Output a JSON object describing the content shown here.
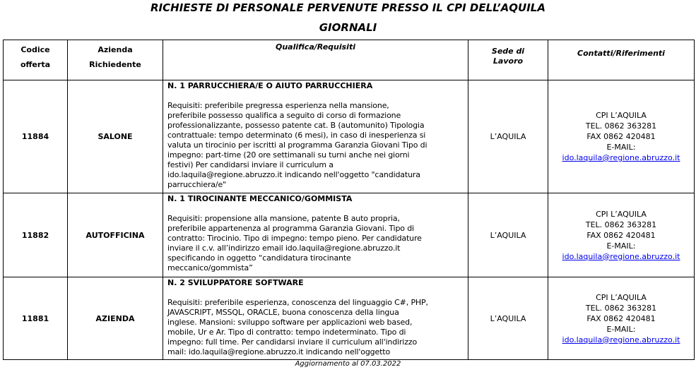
{
  "document": {
    "title": "RICHIESTE DI PERSONALE PERVENUTE PRESSO IL CPI DELL’AQUILA",
    "subtitle": "GIORNALI",
    "footer": "Aggiornamento al 07.03.2022"
  },
  "table": {
    "headers": {
      "codice": "Codice offerta",
      "codice_l1": "Codice",
      "codice_l2": "offerta",
      "azienda_l1": "Azienda",
      "azienda_l2": "Richiedente",
      "qualifica": "Qualifica/Requisiti",
      "sede_l1": "Sede di",
      "sede_l2": "Lavoro",
      "contatti": "Contatti/Riferimenti"
    },
    "rows": [
      {
        "codice": "11884",
        "azienda": "SALONE",
        "qualifica_title": "N. 1 PARRUCCHIERA/E O AIUTO PARRUCCHIERA",
        "requisiti_lines": [
          "Requisiti: preferibile pregressa esperienza nella mansione,",
          "preferibile possesso qualifica a seguito di corso di formazione",
          "professionalizzante, possesso patente cat. B (automunito) Tipologia",
          "contrattuale: tempo determinato (6 mesi), in caso di inesperienza si",
          "valuta un tirocinio per iscritti al programma Garanzia Giovani Tipo di",
          "impegno: part-time (20 ore settimanali su turni anche nei giorni",
          "festivi) Per candidarsi inviare il curriculum a",
          "ido.laquila@regione.abruzzo.it indicando nell'oggetto \"candidatura",
          "parrucchiera/e\""
        ],
        "sede": "L’AQUILA",
        "contatti": {
          "cpi": "CPI L’AQUILA",
          "tel": "TEL. 0862 363281",
          "fax": "FAX 0862 420481",
          "email_label": "E-MAIL:",
          "email": "ido.laquila@regione.abruzzo.it"
        }
      },
      {
        "codice": "11882",
        "azienda": "AUTOFFICINA",
        "qualifica_title": "N. 1 TIROCINANTE MECCANICO/GOMMISTA",
        "requisiti_lines": [
          "Requisiti: propensione alla mansione, patente B auto propria,",
          "preferibile appartenenza al programma Garanzia Giovani. Tipo di",
          "contratto: Tirocinio. Tipo di impegno: tempo pieno. Per candidature",
          "inviare il c.v. all’indirizzo email ido.laquila@regione.abruzzo.it",
          "specificando in oggetto “candidatura tirocinante",
          "meccanico/gommista”"
        ],
        "sede": "L’AQUILA",
        "contatti": {
          "cpi": "CPI L’AQUILA",
          "tel": "TEL. 0862 363281",
          "fax": "FAX 0862 420481",
          "email_label": "E-MAIL:",
          "email": "ido.laquila@regione.abruzzo.it"
        }
      },
      {
        "codice": "11881",
        "azienda": "AZIENDA",
        "qualifica_title": "N. 2 SVILUPPATORE SOFTWARE",
        "requisiti_lines": [
          "Requisiti: preferibile esperienza, conoscenza del linguaggio C#, PHP,",
          "JAVASCRIPT, MSSQL, ORACLE, buona conoscenza della lingua",
          "inglese. Mansioni: sviluppo software per applicazioni web based,",
          "mobile, Ur e Ar. Tipo di contratto: tempo indeterminato. Tipo di",
          "impegno: full time. Per candidarsi inviare il curriculum all'indirizzo",
          "mail: ido.laquila@regione.abruzzo.it indicando nell'oggetto"
        ],
        "sede": "L’AQUILA",
        "contatti": {
          "cpi": "CPI L’AQUILA",
          "tel": "TEL. 0862 363281",
          "fax": "FAX 0862 420481",
          "email_label": "E-MAIL:",
          "email": "ido.laquila@regione.abruzzo.it"
        }
      }
    ]
  }
}
